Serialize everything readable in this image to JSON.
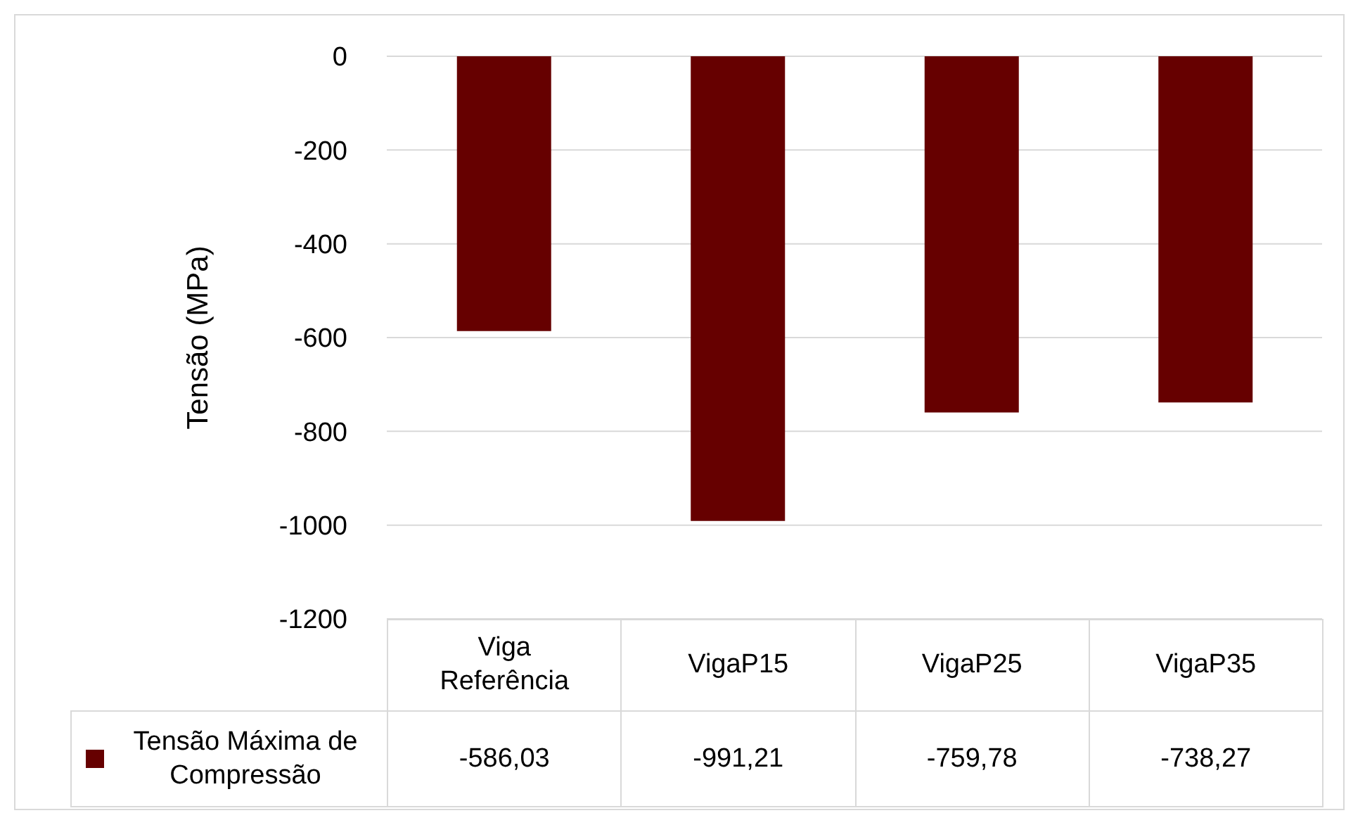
{
  "chart_data": {
    "type": "bar",
    "ylabel": "Tensão (MPa)",
    "categories": [
      "Viga Referência",
      "VigaP15",
      "VigaP25",
      "VigaP35"
    ],
    "series": [
      {
        "name": "Tensão Máxima de Compressão",
        "color": "#660000",
        "values": [
          -586.03,
          -991.21,
          -759.78,
          -738.27
        ],
        "value_labels": [
          "-586,03",
          "-991,21",
          "-759,78",
          "-738,27"
        ]
      }
    ],
    "ylim": [
      -1200,
      0
    ],
    "yticks": [
      0,
      -200,
      -400,
      -600,
      -800,
      -1000,
      -1200
    ],
    "grid": "y"
  }
}
